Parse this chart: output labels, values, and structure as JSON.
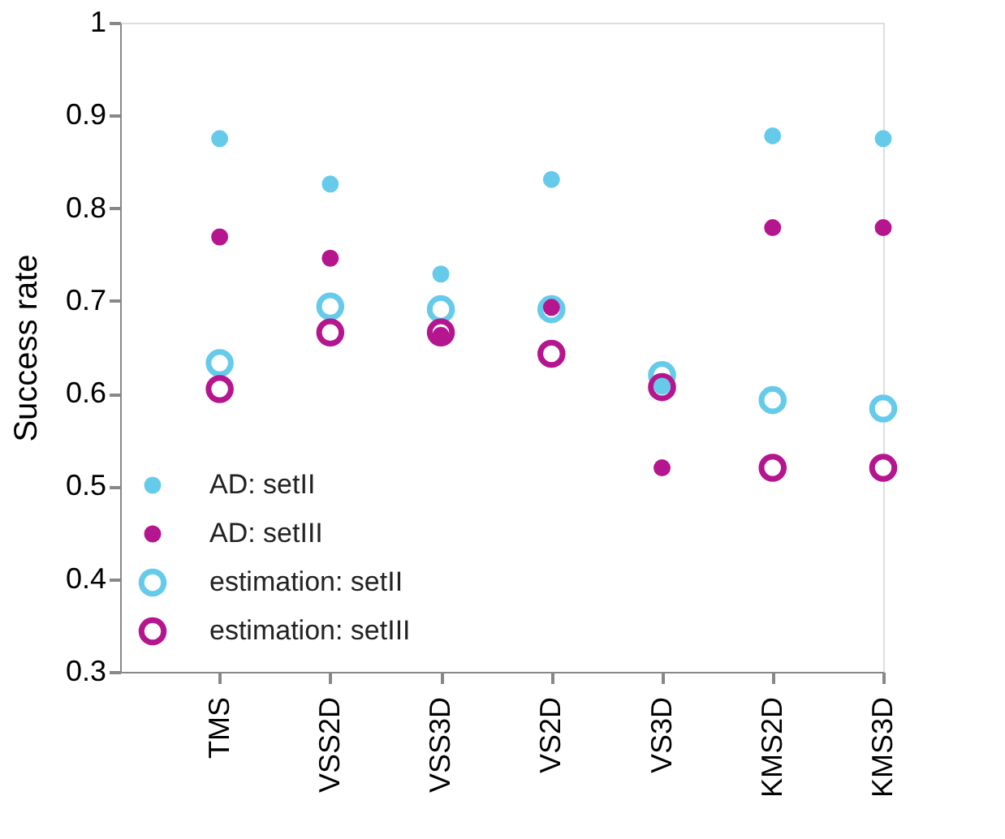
{
  "chart_data": {
    "type": "scatter",
    "ylabel": "Success rate",
    "categories": [
      "TMS",
      "VSS2D",
      "VSS3D",
      "VS2D",
      "VS3D",
      "KMS2D",
      "KMS3D"
    ],
    "series": [
      {
        "name": "AD: setII",
        "color": "#66cbea",
        "marker": "circle",
        "values": [
          0.875,
          0.826,
          0.729,
          0.831,
          0.608,
          0.878,
          0.875
        ]
      },
      {
        "name": "AD: setIII",
        "color": "#b5158f",
        "marker": "circle",
        "values": [
          0.769,
          0.746,
          0.663,
          0.693,
          0.52,
          0.779,
          0.779
        ]
      },
      {
        "name": "estimation: setII",
        "color": "#66cbea",
        "marker": "circle",
        "values": [
          0.633,
          0.694,
          0.691,
          0.691,
          0.62,
          0.593,
          0.584
        ]
      },
      {
        "name": "estimation: setIII",
        "color": "#b5158f",
        "marker": "circle",
        "values": [
          0.605,
          0.666,
          0.666,
          0.643,
          0.607,
          0.52,
          0.52
        ]
      }
    ],
    "ylim": [
      0.3,
      1
    ],
    "yticks": [
      0.3,
      0.4,
      0.5,
      0.6,
      0.7,
      0.8,
      0.9,
      1
    ],
    "grid": false,
    "legend": "bottom left"
  }
}
